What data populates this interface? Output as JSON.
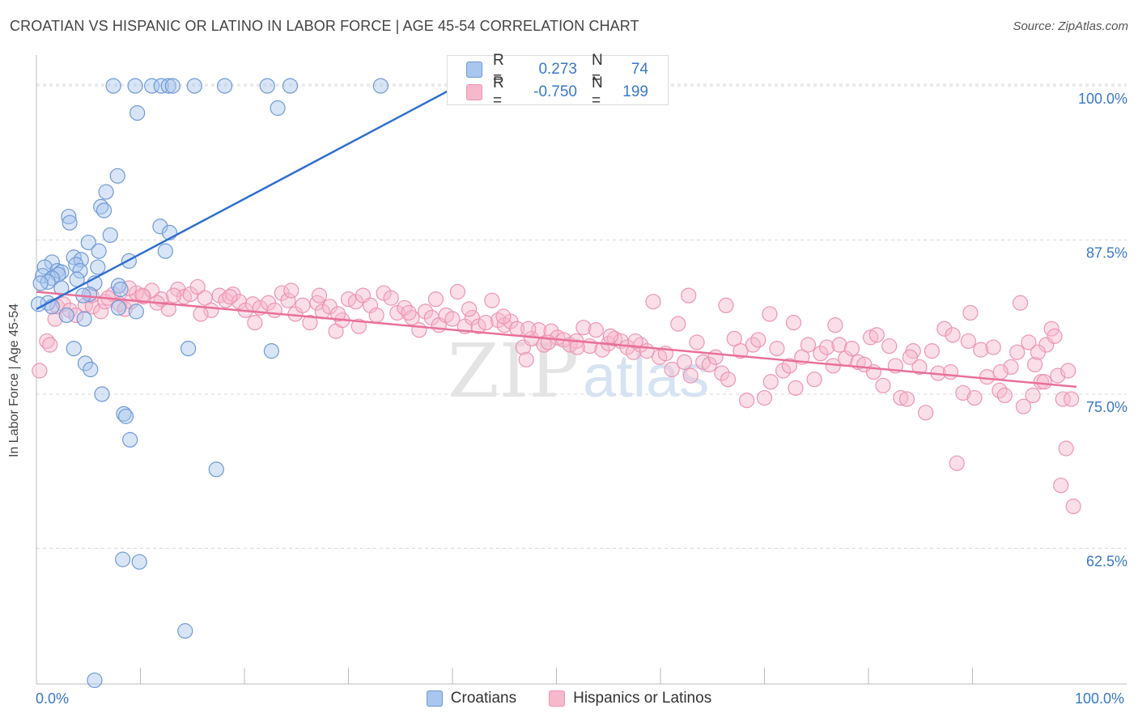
{
  "title": "CROATIAN VS HISPANIC OR LATINO IN LABOR FORCE | AGE 45-54 CORRELATION CHART",
  "source": "Source: ZipAtlas.com",
  "watermark": {
    "part1": "ZIP",
    "part2": "atlas"
  },
  "legend": {
    "series1": {
      "r_label": "R =",
      "r_value": "0.273",
      "n_label": "N =",
      "n_value": "74"
    },
    "series2": {
      "r_label": "R =",
      "r_value": "-0.750",
      "n_label": "N =",
      "n_value": "199"
    }
  },
  "colors": {
    "blue": "#3a78c9",
    "blue_fill": "#a9c6ee",
    "blue_stroke": "#6f9ad6",
    "blue_line": "#2f6fd0",
    "pink_fill": "#f6b9cc",
    "pink_stroke": "#ee94b2",
    "pink_line": "#e9709a",
    "grid": "#d8d8d8"
  },
  "chart_data": {
    "type": "scatter",
    "title": "CROATIAN VS HISPANIC OR LATINO IN LABOR FORCE | AGE 45-54 CORRELATION CHART",
    "xlabel": "",
    "ylabel": "In Labor Force | Age 45-54",
    "xlim": [
      0,
      100
    ],
    "ylim": [
      51.5,
      102.5
    ],
    "x_tick_labels": [
      "0.0%",
      "100.0%"
    ],
    "y_ticks": [
      62.5,
      75.0,
      87.5,
      100.0
    ],
    "y_tick_labels": [
      "62.5%",
      "75.0%",
      "87.5%",
      "100.0%"
    ],
    "grid": true,
    "legend_position": "bottom",
    "series": [
      {
        "name": "Croatians",
        "color": "#a9c6ee",
        "trend": {
          "x0": 0.0,
          "y0": 81.9,
          "x1": 40.5,
          "y1": 100.0
        },
        "points": [
          [
            7.4,
            100.0
          ],
          [
            9.5,
            100.0
          ],
          [
            11.1,
            100.0
          ],
          [
            12.0,
            100.0
          ],
          [
            12.7,
            100.0
          ],
          [
            13.1,
            100.0
          ],
          [
            15.2,
            100.0
          ],
          [
            18.1,
            100.0
          ],
          [
            22.2,
            100.0
          ],
          [
            24.4,
            100.0
          ],
          [
            33.1,
            100.0
          ],
          [
            9.7,
            97.8
          ],
          [
            23.2,
            98.2
          ],
          [
            7.8,
            92.7
          ],
          [
            6.7,
            91.4
          ],
          [
            6.2,
            90.2
          ],
          [
            6.5,
            89.9
          ],
          [
            3.1,
            89.4
          ],
          [
            3.2,
            88.9
          ],
          [
            11.9,
            88.6
          ],
          [
            12.8,
            88.1
          ],
          [
            7.1,
            87.9
          ],
          [
            5.0,
            87.3
          ],
          [
            12.4,
            86.6
          ],
          [
            6.0,
            86.6
          ],
          [
            3.6,
            86.1
          ],
          [
            4.3,
            85.9
          ],
          [
            8.9,
            85.8
          ],
          [
            1.5,
            85.7
          ],
          [
            3.8,
            85.5
          ],
          [
            5.9,
            85.3
          ],
          [
            0.8,
            85.3
          ],
          [
            2.0,
            85.0
          ],
          [
            4.2,
            85.0
          ],
          [
            2.4,
            84.9
          ],
          [
            2.1,
            84.7
          ],
          [
            0.6,
            84.6
          ],
          [
            1.5,
            84.4
          ],
          [
            3.9,
            84.3
          ],
          [
            1.1,
            84.1
          ],
          [
            0.4,
            84.0
          ],
          [
            5.6,
            84.0
          ],
          [
            7.9,
            83.8
          ],
          [
            2.4,
            83.6
          ],
          [
            8.1,
            83.5
          ],
          [
            5.1,
            83.1
          ],
          [
            4.5,
            83.0
          ],
          [
            1.1,
            82.4
          ],
          [
            0.2,
            82.3
          ],
          [
            1.5,
            82.1
          ],
          [
            7.9,
            82.0
          ],
          [
            9.6,
            81.7
          ],
          [
            2.9,
            81.4
          ],
          [
            4.6,
            81.1
          ],
          [
            3.6,
            78.7
          ],
          [
            14.6,
            78.7
          ],
          [
            22.6,
            78.5
          ],
          [
            4.7,
            77.5
          ],
          [
            5.2,
            77.0
          ],
          [
            6.3,
            75.0
          ],
          [
            8.4,
            73.4
          ],
          [
            8.6,
            73.2
          ],
          [
            9.0,
            71.3
          ],
          [
            17.3,
            68.9
          ],
          [
            8.3,
            61.6
          ],
          [
            9.9,
            61.4
          ],
          [
            14.3,
            55.8
          ],
          [
            5.6,
            51.8
          ]
        ]
      },
      {
        "name": "Hispanics or Latinos",
        "color": "#f6b9cc",
        "trend": {
          "x0": 0.0,
          "y0": 83.3,
          "x1": 100.0,
          "y1": 75.6
        },
        "points": [
          [
            0.3,
            76.9
          ],
          [
            1.0,
            79.3
          ],
          [
            1.3,
            79.0
          ],
          [
            1.8,
            81.1
          ],
          [
            2.0,
            82.1
          ],
          [
            2.6,
            82.3
          ],
          [
            3.2,
            81.8
          ],
          [
            3.8,
            81.4
          ],
          [
            4.7,
            82.2
          ],
          [
            5.4,
            82.1
          ],
          [
            6.2,
            81.7
          ],
          [
            6.6,
            82.5
          ],
          [
            7.4,
            83.1
          ],
          [
            8.0,
            82.3
          ],
          [
            8.5,
            81.9
          ],
          [
            9.1,
            82.5
          ],
          [
            9.6,
            83.2
          ],
          [
            10.3,
            82.9
          ],
          [
            11.1,
            83.4
          ],
          [
            12.0,
            82.7
          ],
          [
            12.7,
            81.9
          ],
          [
            13.6,
            83.5
          ],
          [
            14.2,
            82.9
          ],
          [
            14.8,
            83.1
          ],
          [
            15.5,
            83.7
          ],
          [
            16.2,
            82.8
          ],
          [
            16.8,
            81.8
          ],
          [
            17.6,
            83.0
          ],
          [
            18.2,
            82.6
          ],
          [
            18.9,
            83.1
          ],
          [
            19.5,
            82.5
          ],
          [
            20.1,
            81.8
          ],
          [
            20.8,
            82.3
          ],
          [
            21.5,
            82.0
          ],
          [
            22.3,
            82.4
          ],
          [
            22.9,
            81.8
          ],
          [
            23.6,
            83.2
          ],
          [
            24.2,
            82.6
          ],
          [
            24.9,
            81.5
          ],
          [
            25.6,
            82.2
          ],
          [
            26.3,
            80.8
          ],
          [
            27.0,
            82.4
          ],
          [
            27.5,
            81.7
          ],
          [
            28.2,
            82.1
          ],
          [
            28.8,
            80.1
          ],
          [
            29.4,
            81.0
          ],
          [
            30.0,
            82.7
          ],
          [
            30.7,
            82.5
          ],
          [
            31.4,
            83.0
          ],
          [
            32.1,
            82.2
          ],
          [
            32.7,
            81.4
          ],
          [
            33.4,
            83.2
          ],
          [
            34.1,
            82.8
          ],
          [
            34.7,
            81.6
          ],
          [
            35.4,
            82.0
          ],
          [
            36.1,
            81.2
          ],
          [
            36.8,
            80.2
          ],
          [
            37.4,
            81.7
          ],
          [
            38.0,
            81.2
          ],
          [
            38.7,
            80.6
          ],
          [
            39.4,
            81.4
          ],
          [
            40.0,
            81.1
          ],
          [
            40.5,
            83.3
          ],
          [
            41.2,
            80.5
          ],
          [
            41.9,
            81.2
          ],
          [
            42.5,
            80.5
          ],
          [
            43.2,
            80.8
          ],
          [
            43.8,
            82.6
          ],
          [
            44.4,
            81.0
          ],
          [
            45.0,
            80.6
          ],
          [
            45.6,
            80.9
          ],
          [
            46.2,
            80.3
          ],
          [
            46.8,
            78.8
          ],
          [
            47.1,
            77.8
          ],
          [
            47.6,
            79.5
          ],
          [
            48.3,
            80.2
          ],
          [
            48.8,
            79.0
          ],
          [
            49.5,
            80.1
          ],
          [
            50.1,
            79.6
          ],
          [
            50.7,
            79.4
          ],
          [
            51.3,
            79.0
          ],
          [
            51.9,
            79.3
          ],
          [
            52.6,
            80.4
          ],
          [
            53.2,
            78.9
          ],
          [
            53.8,
            80.2
          ],
          [
            54.4,
            78.6
          ],
          [
            55.0,
            79.1
          ],
          [
            55.6,
            79.5
          ],
          [
            56.2,
            79.3
          ],
          [
            56.8,
            78.8
          ],
          [
            57.4,
            78.4
          ],
          [
            58.1,
            79.0
          ],
          [
            58.7,
            78.5
          ],
          [
            59.3,
            82.5
          ],
          [
            59.9,
            78.0
          ],
          [
            60.5,
            78.3
          ],
          [
            61.1,
            77.0
          ],
          [
            61.7,
            80.7
          ],
          [
            62.3,
            77.6
          ],
          [
            62.9,
            76.5
          ],
          [
            63.5,
            79.2
          ],
          [
            64.1,
            77.6
          ],
          [
            64.7,
            77.4
          ],
          [
            65.3,
            78.0
          ],
          [
            65.9,
            76.7
          ],
          [
            66.5,
            76.2
          ],
          [
            67.1,
            79.5
          ],
          [
            67.7,
            78.5
          ],
          [
            68.3,
            74.5
          ],
          [
            68.9,
            79.0
          ],
          [
            69.4,
            79.4
          ],
          [
            70.0,
            74.7
          ],
          [
            70.6,
            76.0
          ],
          [
            71.2,
            78.7
          ],
          [
            71.8,
            76.9
          ],
          [
            72.4,
            77.3
          ],
          [
            73.0,
            75.5
          ],
          [
            73.6,
            78.0
          ],
          [
            74.2,
            79.0
          ],
          [
            74.8,
            76.2
          ],
          [
            75.4,
            78.3
          ],
          [
            76.0,
            78.8
          ],
          [
            76.6,
            77.3
          ],
          [
            77.2,
            79.0
          ],
          [
            77.8,
            77.9
          ],
          [
            78.4,
            78.7
          ],
          [
            79.0,
            77.6
          ],
          [
            79.6,
            77.4
          ],
          [
            80.2,
            79.6
          ],
          [
            80.8,
            79.8
          ],
          [
            81.4,
            75.7
          ],
          [
            82.0,
            78.9
          ],
          [
            82.6,
            77.3
          ],
          [
            83.1,
            74.7
          ],
          [
            83.7,
            74.6
          ],
          [
            84.3,
            78.5
          ],
          [
            84.9,
            77.2
          ],
          [
            85.5,
            73.5
          ],
          [
            86.1,
            78.5
          ],
          [
            86.7,
            76.7
          ],
          [
            87.3,
            80.3
          ],
          [
            87.9,
            76.8
          ],
          [
            88.5,
            69.4
          ],
          [
            89.1,
            75.1
          ],
          [
            89.6,
            79.3
          ],
          [
            90.2,
            74.7
          ],
          [
            90.8,
            78.6
          ],
          [
            91.4,
            76.4
          ],
          [
            92.0,
            78.8
          ],
          [
            92.6,
            75.3
          ],
          [
            93.1,
            74.9
          ],
          [
            93.7,
            77.2
          ],
          [
            94.3,
            78.4
          ],
          [
            94.9,
            74.0
          ],
          [
            95.4,
            79.2
          ],
          [
            96.0,
            77.4
          ],
          [
            96.6,
            76.0
          ],
          [
            97.1,
            79.0
          ],
          [
            97.6,
            80.3
          ],
          [
            98.2,
            76.5
          ],
          [
            98.7,
            74.6
          ],
          [
            99.2,
            76.9
          ],
          [
            99.5,
            74.6
          ],
          [
            92.7,
            76.8
          ],
          [
            89.8,
            81.6
          ],
          [
            76.8,
            80.6
          ],
          [
            70.5,
            81.5
          ],
          [
            66.3,
            82.2
          ],
          [
            94.6,
            82.4
          ],
          [
            96.3,
            78.4
          ],
          [
            97.9,
            79.7
          ],
          [
            84.0,
            78.0
          ],
          [
            80.5,
            76.8
          ],
          [
            72.8,
            80.8
          ],
          [
            62.7,
            83.0
          ],
          [
            55.2,
            79.7
          ],
          [
            52.0,
            78.8
          ],
          [
            47.3,
            80.3
          ],
          [
            44.9,
            81.3
          ],
          [
            41.6,
            81.9
          ],
          [
            38.4,
            82.7
          ],
          [
            35.8,
            81.6
          ],
          [
            31.0,
            80.5
          ],
          [
            29.0,
            81.5
          ],
          [
            27.2,
            83.0
          ],
          [
            24.5,
            83.4
          ],
          [
            21.0,
            80.8
          ],
          [
            18.6,
            82.9
          ],
          [
            15.8,
            81.5
          ],
          [
            13.2,
            83.0
          ],
          [
            11.6,
            82.4
          ],
          [
            10.2,
            83.0
          ],
          [
            8.9,
            83.6
          ],
          [
            6.9,
            82.8
          ],
          [
            5.3,
            83.0
          ],
          [
            99.0,
            70.6
          ],
          [
            98.5,
            67.6
          ],
          [
            99.7,
            65.9
          ],
          [
            96.9,
            76.0
          ],
          [
            95.8,
            74.9
          ],
          [
            88.1,
            79.8
          ],
          [
            57.6,
            79.3
          ],
          [
            49.2,
            79.2
          ]
        ]
      }
    ]
  }
}
